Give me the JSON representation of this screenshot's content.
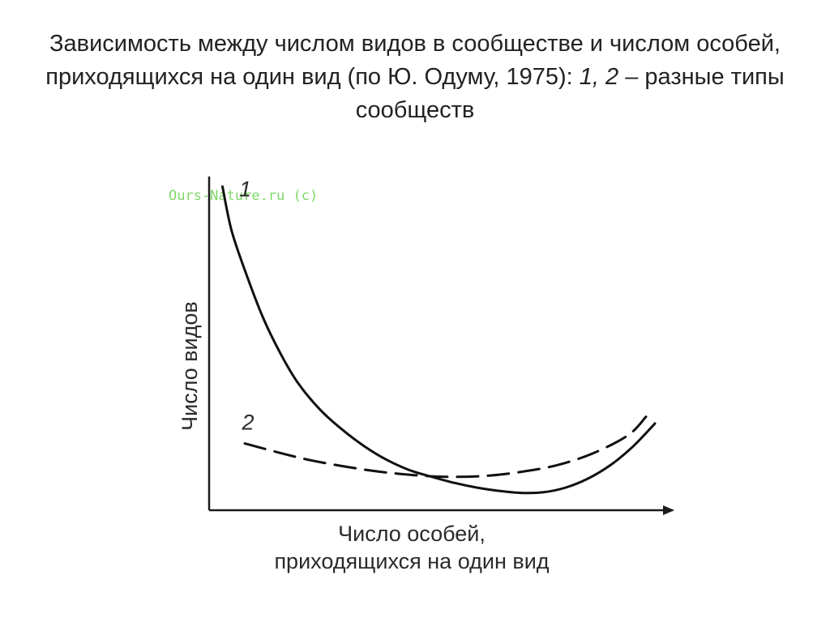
{
  "slide": {
    "title_part1": "Зависимость между числом видов в сообществе и числом особей, приходящихся на один вид (по Ю. Одуму, 1975): ",
    "title_part2": "1, 2",
    "title_part3": " – разные типы сообществ"
  },
  "chart_data": {
    "type": "line",
    "xlabel_line1": "Число особей,",
    "xlabel_line2": "приходящихся на один вид",
    "ylabel": "Число видов",
    "watermark": "Ours-Nature.ru (c)",
    "grid": false,
    "xlim": [
      0,
      100
    ],
    "ylim": [
      0,
      100
    ],
    "series": [
      {
        "name": "1",
        "style": "solid",
        "x": [
          3,
          5,
          8,
          12,
          16,
          20,
          25,
          30,
          35,
          40,
          45,
          50,
          55,
          60,
          65,
          70,
          75,
          80,
          85,
          90,
          95,
          100
        ],
        "y": [
          97,
          84,
          72,
          58,
          47,
          38,
          30,
          24,
          19,
          15,
          12,
          10,
          8.2,
          6.8,
          5.8,
          5.2,
          5.4,
          6.8,
          9.5,
          13.5,
          19,
          26
        ]
      },
      {
        "name": "2",
        "style": "dashed",
        "x": [
          8,
          15,
          22,
          30,
          38,
          46,
          54,
          62,
          70,
          78,
          86,
          94,
          98
        ],
        "y": [
          20,
          17.5,
          15.2,
          13.2,
          11.6,
          10.5,
          10,
          10.3,
          11.5,
          13.5,
          17,
          22.5,
          28
        ]
      }
    ],
    "colors": {
      "curve": "#111111",
      "axis": "#1a1a1a",
      "watermark": "#7fd86a",
      "label": "#2a2a2a"
    }
  }
}
